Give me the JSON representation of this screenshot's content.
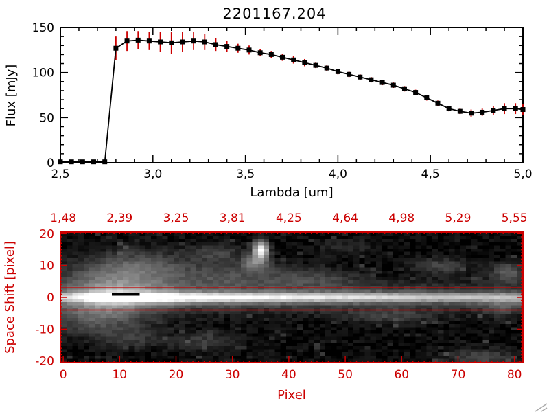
{
  "window": {
    "title": "2201167.204"
  },
  "colors": {
    "data": "#000000",
    "accent": "#cc0000",
    "background": "#ffffff",
    "grip": "#aaaaaa"
  },
  "chart_data": [
    {
      "type": "line",
      "title": "2201167.204",
      "xlabel": "Lambda [um]",
      "ylabel": "Flux [mJy]",
      "xlim": [
        2.5,
        5.0
      ],
      "ylim": [
        0,
        150
      ],
      "xticks": [
        2.5,
        3.0,
        3.5,
        4.0,
        4.5,
        5.0
      ],
      "xtick_labels": [
        "2,5",
        "3,0",
        "3,5",
        "4,0",
        "4,5",
        "5,0"
      ],
      "yticks": [
        0,
        50,
        100,
        150
      ],
      "ytick_labels": [
        "0",
        "50",
        "100",
        "150"
      ],
      "marker": "square",
      "line_color": "#000000",
      "error_color": "#cc0000",
      "x": [
        2.5,
        2.56,
        2.62,
        2.68,
        2.74,
        2.8,
        2.86,
        2.92,
        2.98,
        3.04,
        3.1,
        3.16,
        3.22,
        3.28,
        3.34,
        3.4,
        3.46,
        3.52,
        3.58,
        3.64,
        3.7,
        3.76,
        3.82,
        3.88,
        3.94,
        4.0,
        4.06,
        4.12,
        4.18,
        4.24,
        4.3,
        4.36,
        4.42,
        4.48,
        4.54,
        4.6,
        4.66,
        4.72,
        4.78,
        4.84,
        4.9,
        4.96,
        5.0
      ],
      "y": [
        1,
        1,
        1,
        1,
        1,
        127,
        135,
        136,
        135,
        134,
        133,
        134,
        135,
        134,
        131,
        129,
        127,
        125,
        122,
        120,
        117,
        114,
        111,
        108,
        105,
        101,
        98,
        95,
        92,
        89,
        86,
        82,
        78,
        72,
        66,
        60,
        57,
        55,
        56,
        58,
        60,
        60,
        59
      ],
      "yerr": [
        0,
        0,
        0,
        0,
        0,
        13,
        11,
        10,
        10,
        11,
        12,
        11,
        10,
        9,
        7,
        6,
        5,
        5,
        4,
        4,
        4,
        4,
        4,
        3,
        3,
        3,
        3,
        3,
        3,
        3,
        3,
        3,
        3,
        3,
        3,
        3,
        3,
        4,
        4,
        5,
        6,
        6,
        6
      ]
    },
    {
      "type": "heatmap",
      "xlabel": "Pixel",
      "ylabel": "Space Shift [pixel]",
      "xlim": [
        0,
        81
      ],
      "ylim": [
        -20,
        20
      ],
      "xticks": [
        0,
        10,
        20,
        30,
        40,
        50,
        60,
        70,
        80
      ],
      "xtick_labels": [
        "0",
        "10",
        "20",
        "30",
        "40",
        "50",
        "60",
        "70",
        "80"
      ],
      "yticks": [
        20,
        10,
        0,
        -10,
        -20
      ],
      "ytick_labels": [
        "20",
        "10",
        "0",
        "-10",
        "-20"
      ],
      "top_axis_labels": [
        "1,48",
        "2,39",
        "3,25",
        "3,81",
        "4,25",
        "4,64",
        "4,98",
        "5,29",
        "5,55"
      ],
      "top_axis_positions": [
        0,
        10,
        20,
        30,
        40,
        50,
        60,
        70,
        80
      ],
      "hlines": [
        3,
        -4
      ],
      "frame_color": "#cc0000",
      "image": {
        "width": 82,
        "height": 41,
        "noise_seed": 7,
        "noise_amp": 0.1,
        "band": {
          "y_center": 0,
          "sigma": 1.05,
          "halo": 0.38,
          "halo_sigma": 3.2,
          "profile_x": [
            [
              0,
              0.45
            ],
            [
              4,
              0.62
            ],
            [
              8,
              0.95
            ],
            [
              11,
              1.0
            ],
            [
              15,
              0.9
            ],
            [
              22,
              0.8
            ],
            [
              32,
              0.72
            ],
            [
              42,
              0.66
            ],
            [
              52,
              0.6
            ],
            [
              62,
              0.55
            ],
            [
              72,
              0.5
            ],
            [
              82,
              0.46
            ]
          ]
        },
        "blobs": [
          {
            "x": 8,
            "y": 4,
            "rx": 10,
            "ry": 7,
            "v": 0.32
          },
          {
            "x": 6,
            "y": -6,
            "rx": 9,
            "ry": 6,
            "v": 0.26
          },
          {
            "x": 14,
            "y": 10,
            "rx": 8,
            "ry": 5,
            "v": 0.22
          },
          {
            "x": 30,
            "y": 7,
            "rx": 12,
            "ry": 4,
            "v": 0.2
          },
          {
            "x": 35,
            "y": 15,
            "rx": 1.3,
            "ry": 2.6,
            "v": 1.0
          },
          {
            "x": 34,
            "y": 11,
            "rx": 2.2,
            "ry": 2.2,
            "v": 0.4
          },
          {
            "x": 27,
            "y": 14,
            "rx": 5,
            "ry": 3,
            "v": 0.18
          },
          {
            "x": 45,
            "y": 6,
            "rx": 8,
            "ry": 3,
            "v": 0.13
          },
          {
            "x": 25,
            "y": -14,
            "rx": 6,
            "ry": 3,
            "v": 0.16
          },
          {
            "x": 12,
            "y": -13,
            "rx": 5,
            "ry": 3,
            "v": 0.14
          },
          {
            "x": 58,
            "y": -6,
            "rx": 8,
            "ry": 2.5,
            "v": 0.14
          },
          {
            "x": 67,
            "y": 10,
            "rx": 5,
            "ry": 2.5,
            "v": 0.2
          },
          {
            "x": 79,
            "y": 8,
            "rx": 3,
            "ry": 3,
            "v": 0.28
          },
          {
            "x": 74,
            "y": -19,
            "rx": 6,
            "ry": 2.5,
            "v": 0.2
          },
          {
            "x": 50,
            "y": 16,
            "rx": 5,
            "ry": 2.5,
            "v": 0.1
          },
          {
            "x": 78,
            "y": -3,
            "rx": 4,
            "ry": 3,
            "v": 0.18
          }
        ],
        "black_marker": {
          "x0": 9,
          "x1": 13,
          "v0": 0.5,
          "v1": 2.0
        }
      }
    }
  ]
}
